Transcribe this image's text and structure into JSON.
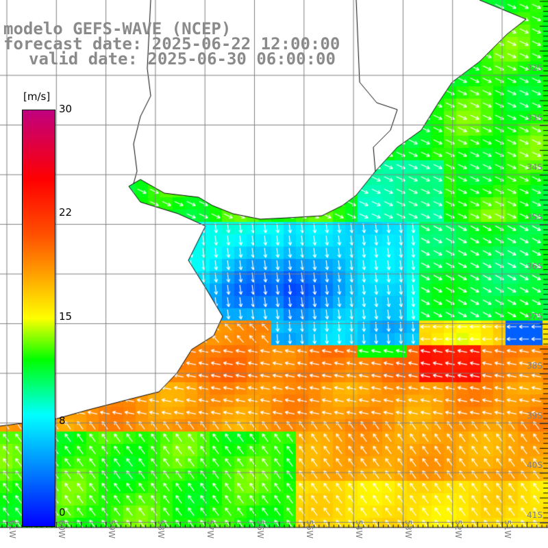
{
  "header": {
    "model": "modelo GEFS-WAVE (NCEP)",
    "forecast": "forecast date: 2025-06-22 12:00:00",
    "valid": "valid date: 2025-06-30 06:00:00"
  },
  "colorbar": {
    "unit": "[m/s]",
    "ticks": [
      "30",
      "22",
      "15",
      "8",
      "0"
    ],
    "range": [
      0,
      30
    ]
  },
  "grid": {
    "lat_labels": [
      "32S",
      "33S",
      "34S",
      "35S",
      "36S",
      "37S",
      "38S",
      "39S",
      "40S",
      "41S"
    ],
    "lon_labels": [
      "61W",
      "60W",
      "59W",
      "58W",
      "57W",
      "56W",
      "55W",
      "54W",
      "53W",
      "52W",
      "51W"
    ]
  },
  "colors": {
    "land": "#ffffff",
    "coast": "#000000",
    "grid": "#808080",
    "label": "#8a8a8a"
  }
}
